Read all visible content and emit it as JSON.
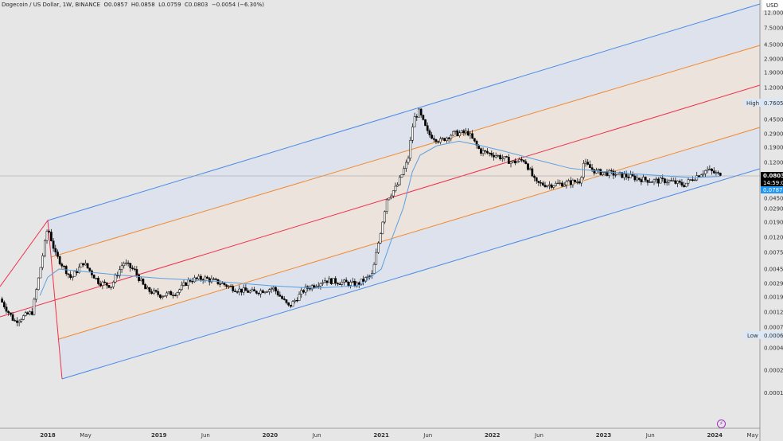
{
  "header": {
    "symbol": "Dogecoin / US Dollar, 1W, BINANCE",
    "open": "O0.0857",
    "high": "H0.0858",
    "low": "L0.0759",
    "close": "C0.0803",
    "change": "−0.0054 (−6.30%)"
  },
  "currency": "USD",
  "colors": {
    "up": "#ffffff",
    "down": "#000000",
    "ma": "#5aa0e0",
    "fork_outer": "#4a8ae8",
    "fork_inner": "#f08a30",
    "median": "#f0304a",
    "axis_bg": "#e6e6e6",
    "last_price": "#000000",
    "ma_label": "#2196f3"
  },
  "chart_data": {
    "type": "candlestick",
    "title": "Dogecoin / US Dollar, 1W, BINANCE",
    "yscale": "log",
    "ylim": [
      8e-05,
      14
    ],
    "price_ticks": [
      "12.0000",
      "7.5000",
      "4.5000",
      "2.9000",
      "1.9000",
      "1.2000",
      "0.4500",
      "0.2900",
      "0.1900",
      "0.1200",
      "0.0450",
      "0.0290",
      "0.0190",
      "0.0120",
      "0.0075",
      "0.0045",
      "0.0029",
      "0.0019",
      "0.0012",
      "0.0007",
      "0.0004",
      "0.0002",
      "0.0001"
    ],
    "time_ticks": [
      {
        "t": 2018.0,
        "label": "2018",
        "bold": true
      },
      {
        "t": 2018.34,
        "label": "May",
        "bold": false
      },
      {
        "t": 2019.0,
        "label": "2019",
        "bold": true
      },
      {
        "t": 2019.42,
        "label": "Jun",
        "bold": false
      },
      {
        "t": 2020.0,
        "label": "2020",
        "bold": true
      },
      {
        "t": 2020.42,
        "label": "Jun",
        "bold": false
      },
      {
        "t": 2021.0,
        "label": "2021",
        "bold": true
      },
      {
        "t": 2021.42,
        "label": "Jun",
        "bold": false
      },
      {
        "t": 2022.0,
        "label": "2022",
        "bold": true
      },
      {
        "t": 2022.42,
        "label": "Jun",
        "bold": false
      },
      {
        "t": 2023.0,
        "label": "2023",
        "bold": true
      },
      {
        "t": 2023.42,
        "label": "Jun",
        "bold": false
      },
      {
        "t": 2024.0,
        "label": "2024",
        "bold": true
      },
      {
        "t": 2024.34,
        "label": "May",
        "bold": false
      }
    ],
    "close_path": [
      [
        2017.57,
        0.0018
      ],
      [
        2017.7,
        0.0009
      ],
      [
        2017.86,
        0.0012
      ],
      [
        2017.93,
        0.0043
      ],
      [
        2018.0,
        0.0165
      ],
      [
        2018.07,
        0.007
      ],
      [
        2018.21,
        0.0034
      ],
      [
        2018.32,
        0.0055
      ],
      [
        2018.46,
        0.003
      ],
      [
        2018.57,
        0.0027
      ],
      [
        2018.68,
        0.0055
      ],
      [
        2018.78,
        0.0043
      ],
      [
        2018.88,
        0.0024
      ],
      [
        2019.02,
        0.002
      ],
      [
        2019.16,
        0.0022
      ],
      [
        2019.27,
        0.0032
      ],
      [
        2019.41,
        0.0034
      ],
      [
        2019.56,
        0.0029
      ],
      [
        2019.7,
        0.0024
      ],
      [
        2019.85,
        0.0022
      ],
      [
        2020.03,
        0.0025
      ],
      [
        2020.17,
        0.0014
      ],
      [
        2020.31,
        0.0024
      ],
      [
        2020.49,
        0.0032
      ],
      [
        2020.64,
        0.003
      ],
      [
        2020.78,
        0.0028
      ],
      [
        2020.92,
        0.0038
      ],
      [
        2020.98,
        0.0113
      ],
      [
        2021.05,
        0.039
      ],
      [
        2021.14,
        0.057
      ],
      [
        2021.24,
        0.13
      ],
      [
        2021.29,
        0.45
      ],
      [
        2021.34,
        0.57
      ],
      [
        2021.42,
        0.29
      ],
      [
        2021.53,
        0.23
      ],
      [
        2021.64,
        0.29
      ],
      [
        2021.78,
        0.3
      ],
      [
        2021.89,
        0.17
      ],
      [
        2022.03,
        0.15
      ],
      [
        2022.18,
        0.12
      ],
      [
        2022.29,
        0.13
      ],
      [
        2022.39,
        0.063
      ],
      [
        2022.5,
        0.06
      ],
      [
        2022.65,
        0.063
      ],
      [
        2022.79,
        0.068
      ],
      [
        2022.82,
        0.117
      ],
      [
        2022.93,
        0.09
      ],
      [
        2023.08,
        0.085
      ],
      [
        2023.22,
        0.078
      ],
      [
        2023.33,
        0.072
      ],
      [
        2023.44,
        0.068
      ],
      [
        2023.58,
        0.068
      ],
      [
        2023.72,
        0.06
      ],
      [
        2023.83,
        0.078
      ],
      [
        2023.93,
        0.096
      ],
      [
        2024.05,
        0.0803
      ]
    ],
    "ma_path": [
      [
        2017.93,
        0.002
      ],
      [
        2018.0,
        0.0035
      ],
      [
        2018.1,
        0.0045
      ],
      [
        2018.3,
        0.0042
      ],
      [
        2018.6,
        0.0038
      ],
      [
        2019.0,
        0.0034
      ],
      [
        2019.5,
        0.0031
      ],
      [
        2020.0,
        0.0027
      ],
      [
        2020.4,
        0.0025
      ],
      [
        2020.8,
        0.0027
      ],
      [
        2021.0,
        0.0045
      ],
      [
        2021.1,
        0.012
      ],
      [
        2021.2,
        0.03
      ],
      [
        2021.28,
        0.09
      ],
      [
        2021.35,
        0.15
      ],
      [
        2021.5,
        0.2
      ],
      [
        2021.7,
        0.23
      ],
      [
        2021.9,
        0.2
      ],
      [
        2022.1,
        0.17
      ],
      [
        2022.4,
        0.13
      ],
      [
        2022.7,
        0.1
      ],
      [
        2023.0,
        0.09
      ],
      [
        2023.4,
        0.082
      ],
      [
        2023.8,
        0.075
      ],
      [
        2024.05,
        0.078
      ]
    ],
    "labels": {
      "high": {
        "name": "High",
        "value": "0.7605"
      },
      "low": {
        "name": "Low",
        "value": "0.0006"
      },
      "last_price": {
        "value": "0.0803",
        "countdown": "14:59:00"
      },
      "ma_value": {
        "value": "0.0787"
      }
    }
  }
}
